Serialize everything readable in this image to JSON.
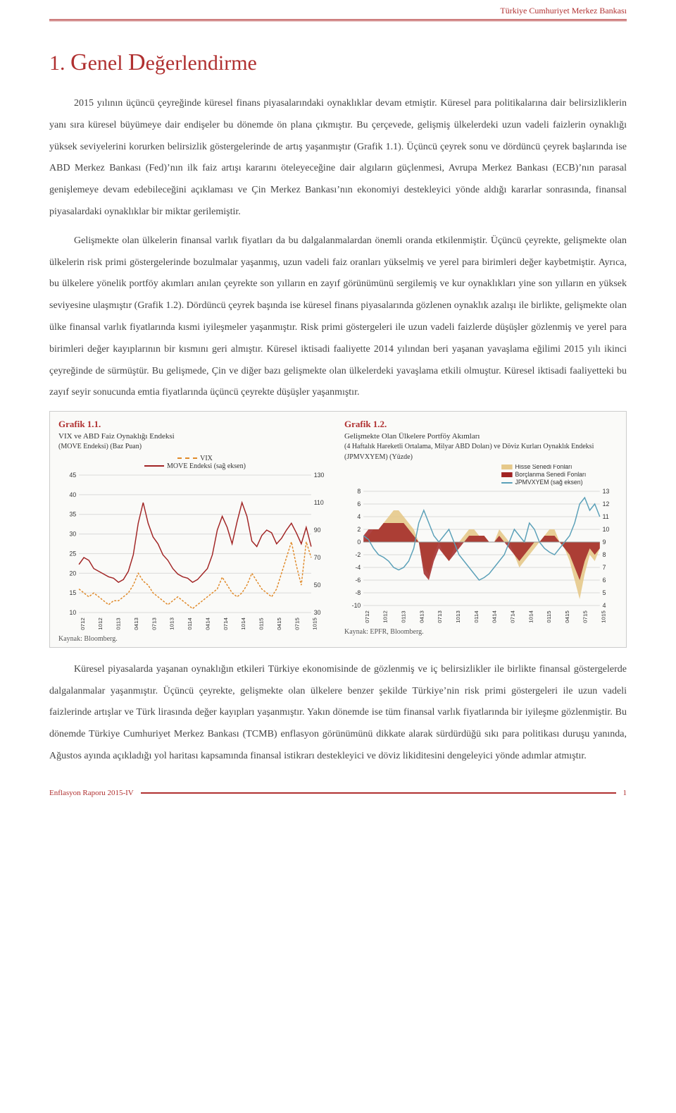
{
  "header": {
    "org": "Türkiye Cumhuriyet Merkez Bankası"
  },
  "title": {
    "num": "1.",
    "rest_big_g": "G",
    "rest1": "enel ",
    "rest_big_d": "D",
    "rest2": "eğerlendirme"
  },
  "para1": "2015 yılının üçüncü çeyreğinde küresel finans piyasalarındaki oynaklıklar devam etmiştir. Küresel para politikalarına dair belirsizliklerin yanı sıra küresel büyümeye dair endişeler bu dönemde ön plana çıkmıştır. Bu çerçevede, gelişmiş ülkelerdeki uzun vadeli faizlerin oynaklığı yüksek seviyelerini korurken belirsizlik göstergelerinde de artış yaşanmıştır (Grafik 1.1). Üçüncü çeyrek sonu ve dördüncü çeyrek başlarında ise ABD Merkez Bankası (Fed)’nın ilk faiz artışı kararını öteleyeceğine dair algıların güçlenmesi, Avrupa Merkez Bankası (ECB)’nın parasal genişlemeye devam edebileceğini açıklaması ve Çin Merkez Bankası’nın ekonomiyi destekleyici yönde aldığı kararlar sonrasında, finansal piyasalardaki oynaklıklar bir miktar gerilemiştir.",
  "para2": "Gelişmekte olan ülkelerin finansal varlık fiyatları da bu dalgalanmalardan önemli oranda etkilenmiştir. Üçüncü çeyrekte, gelişmekte olan ülkelerin risk primi göstergelerinde bozulmalar yaşanmış, uzun vadeli faiz oranları yükselmiş ve yerel para birimleri değer kaybetmiştir. Ayrıca, bu ülkelere yönelik portföy akımları anılan çeyrekte son yılların en zayıf görünümünü sergilemiş ve kur oynaklıkları yine son yılların en yüksek seviyesine ulaşmıştır (Grafik 1.2). Dördüncü çeyrek başında ise küresel finans piyasalarında gözlenen oynaklık azalışı ile birlikte, gelişmekte olan ülke finansal varlık fiyatlarında kısmi iyileşmeler yaşanmıştır. Risk primi göstergeleri ile uzun vadeli faizlerde düşüşler gözlenmiş ve yerel para birimleri değer kayıplarının bir kısmını geri almıştır. Küresel iktisadi faaliyette 2014 yılından beri yaşanan yavaşlama eğilimi 2015 yılı ikinci çeyreğinde de sürmüştür. Bu gelişmede, Çin ve diğer bazı gelişmekte olan ülkelerdeki yavaşlama etkili olmuştur. Küresel iktisadi faaliyetteki bu zayıf seyir sonucunda emtia fiyatlarında üçüncü çeyrekte düşüşler yaşanmıştır.",
  "para3": "Küresel piyasalarda yaşanan oynaklığın etkileri Türkiye ekonomisinde de gözlenmiş ve iç belirsizlikler ile birlikte finansal göstergelerde dalgalanmalar yaşanmıştır. Üçüncü çeyrekte, gelişmekte olan ülkelere benzer şekilde Türkiye’nin risk primi göstergeleri ile uzun vadeli faizlerinde artışlar ve Türk lirasında değer kayıpları yaşanmıştır. Yakın dönemde ise tüm finansal varlık fiyatlarında bir iyileşme gözlenmiştir. Bu dönemde Türkiye Cumhuriyet Merkez Bankası (TCMB) enflasyon görünümünü dikkate alarak sürdürdüğü sıkı para politikası duruşu yanında, Ağustos ayında açıkladığı yol haritası kapsamında finansal istikrarı destekleyici ve döviz likiditesini dengeleyici yönde adımlar atmıştır.",
  "chart1": {
    "title": "Grafik 1.1.",
    "subtitle": "VIX ve ABD Faiz Oynaklığı Endeksi",
    "subtitle2": "(MOVE Endeksi) (Baz Puan)",
    "legend_vix": "VIX",
    "legend_move": "MOVE Endeksi (sağ eksen)",
    "source": "Kaynak: Bloomberg.",
    "y_left": {
      "min": 10,
      "max": 45,
      "step": 5
    },
    "y_right": {
      "min": 30,
      "max": 130,
      "step": 20
    },
    "x_labels": [
      "0712",
      "1012",
      "0113",
      "0413",
      "0713",
      "1013",
      "0114",
      "0414",
      "0714",
      "1014",
      "0115",
      "0415",
      "0715",
      "1015"
    ],
    "colors": {
      "vix": "#e08a2a",
      "move": "#a12424",
      "grid": "#d9d9d9",
      "bg": "#fafaf8"
    },
    "vix_values": [
      16,
      15,
      14,
      15,
      14,
      13,
      12,
      13,
      13,
      14,
      15,
      17,
      20,
      18,
      17,
      15,
      14,
      13,
      12,
      13,
      14,
      13,
      12,
      11,
      12,
      13,
      14,
      15,
      16,
      19,
      17,
      15,
      14,
      15,
      17,
      20,
      18,
      16,
      15,
      14,
      16,
      20,
      24,
      28,
      22,
      17,
      28,
      24
    ],
    "move_values": [
      65,
      70,
      68,
      62,
      60,
      58,
      56,
      55,
      52,
      54,
      60,
      72,
      95,
      110,
      95,
      85,
      80,
      72,
      68,
      62,
      58,
      56,
      55,
      52,
      54,
      58,
      62,
      72,
      90,
      100,
      92,
      80,
      96,
      110,
      100,
      82,
      78,
      86,
      90,
      88,
      80,
      84,
      90,
      95,
      88,
      80,
      92,
      78
    ]
  },
  "chart2": {
    "title": "Grafik 1.2.",
    "subtitle": "Gelişmekte Olan Ülkelere Portföy Akımları",
    "subtitle2": "(4 Haftalık Hareketli Ortalama, Milyar ABD Doları) ve Döviz Kurları Oynaklık Endeksi (JPMVXYEM) (Yüzde)",
    "legend_equity": "Hisse Senedi Fonları",
    "legend_bond": "Borçlanma Senedi Fonları",
    "legend_jpm": "JPMVXYEM (sağ eksen)",
    "source": "Kaynak: EPFR, Bloomberg.",
    "y_left": {
      "min": -10,
      "max": 8,
      "step": 2
    },
    "y_right": {
      "min": 4,
      "max": 13,
      "step": 1
    },
    "x_labels": [
      "0712",
      "1012",
      "0113",
      "0413",
      "0713",
      "1013",
      "0114",
      "0414",
      "0714",
      "1014",
      "0115",
      "0415",
      "0715",
      "1015"
    ],
    "colors": {
      "equity": "#e6c98a",
      "bond": "#a12424",
      "jpm": "#5aa0b8",
      "grid": "#d9d9d9",
      "bg": "#fafaf8"
    },
    "equity_values": [
      0,
      1,
      2,
      2,
      3,
      4,
      5,
      5,
      4,
      3,
      2,
      0,
      -4,
      -5,
      -2,
      0,
      -2,
      -3,
      -1,
      0,
      1,
      2,
      2,
      1,
      1,
      0,
      0,
      2,
      1,
      0,
      -2,
      -4,
      -3,
      -2,
      -1,
      0,
      1,
      2,
      2,
      0,
      -1,
      -3,
      -6,
      -9,
      -5,
      -2,
      -3,
      -1
    ],
    "bond_values": [
      1,
      2,
      2,
      2,
      3,
      3,
      3,
      3,
      3,
      2,
      1,
      0,
      -5,
      -6,
      -3,
      -1,
      -2,
      -3,
      -2,
      -1,
      0,
      1,
      1,
      1,
      1,
      0,
      0,
      1,
      0,
      -1,
      -2,
      -3,
      -2,
      -1,
      0,
      0,
      1,
      1,
      1,
      0,
      -1,
      -2,
      -4,
      -6,
      -3,
      -1,
      -2,
      -1
    ],
    "jpm_values": [
      9.5,
      9.2,
      8.5,
      8.0,
      7.8,
      7.5,
      7.0,
      6.8,
      7.0,
      7.5,
      8.5,
      10.5,
      11.5,
      10.5,
      9.5,
      9.0,
      9.5,
      10.0,
      9.0,
      8.0,
      7.5,
      7.0,
      6.5,
      6.0,
      6.2,
      6.5,
      7.0,
      7.5,
      8.0,
      9.0,
      10.0,
      9.5,
      9.0,
      10.5,
      10.0,
      9.0,
      8.5,
      8.2,
      8.0,
      8.5,
      9.0,
      9.5,
      10.5,
      12.0,
      12.5,
      11.5,
      12.0,
      11.0
    ]
  },
  "footer": {
    "left": "Enflasyon Raporu 2015-IV",
    "page": "1"
  }
}
